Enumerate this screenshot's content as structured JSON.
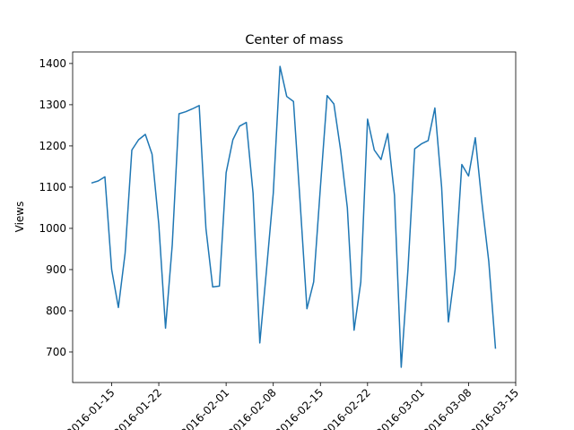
{
  "chart_data": {
    "type": "line",
    "title": "Center of mass",
    "y_label": "Views",
    "x": [
      "2016-01-12",
      "2016-01-13",
      "2016-01-14",
      "2016-01-15",
      "2016-01-16",
      "2016-01-17",
      "2016-01-18",
      "2016-01-19",
      "2016-01-20",
      "2016-01-21",
      "2016-01-22",
      "2016-01-23",
      "2016-01-24",
      "2016-01-25",
      "2016-01-26",
      "2016-01-27",
      "2016-01-28",
      "2016-01-29",
      "2016-01-30",
      "2016-01-31",
      "2016-02-01",
      "2016-02-02",
      "2016-02-03",
      "2016-02-04",
      "2016-02-05",
      "2016-02-06",
      "2016-02-07",
      "2016-02-08",
      "2016-02-09",
      "2016-02-10",
      "2016-02-11",
      "2016-02-12",
      "2016-02-13",
      "2016-02-14",
      "2016-02-15",
      "2016-02-16",
      "2016-02-17",
      "2016-02-18",
      "2016-02-19",
      "2016-02-20",
      "2016-02-21",
      "2016-02-22",
      "2016-02-23",
      "2016-02-24",
      "2016-02-25",
      "2016-02-26",
      "2016-02-27",
      "2016-02-28",
      "2016-02-29",
      "2016-03-01",
      "2016-03-02",
      "2016-03-03",
      "2016-03-04",
      "2016-03-05",
      "2016-03-06",
      "2016-03-07",
      "2016-03-08",
      "2016-03-09",
      "2016-03-10",
      "2016-03-11",
      "2016-03-12"
    ],
    "series": [
      {
        "color": "#1f77b4",
        "values": [
          1110,
          1115,
          1125,
          900,
          808,
          940,
          1190,
          1215,
          1228,
          1180,
          1010,
          758,
          960,
          1278,
          1283,
          1290,
          1298,
          1000,
          858,
          860,
          1135,
          1215,
          1248,
          1257,
          1085,
          722,
          900,
          1085,
          1393,
          1320,
          1308,
          1060,
          805,
          870,
          1100,
          1322,
          1302,
          1190,
          1050,
          753,
          870,
          1265,
          1190,
          1167,
          1230,
          1080,
          663,
          900,
          1193,
          1205,
          1213,
          1292,
          1100,
          773,
          900,
          1155,
          1127,
          1220,
          1060,
          920,
          708
        ]
      }
    ],
    "xlim": [
      "2016-01-09T05:00",
      "2016-03-15"
    ],
    "xticks": [
      "2016-01-15",
      "2016-01-22",
      "2016-02-01",
      "2016-02-08",
      "2016-02-15",
      "2016-02-22",
      "2016-03-01",
      "2016-03-08",
      "2016-03-15"
    ],
    "ylim": [
      626,
      1428
    ],
    "yticks": [
      700,
      800,
      900,
      1000,
      1100,
      1200,
      1300,
      1400
    ]
  }
}
